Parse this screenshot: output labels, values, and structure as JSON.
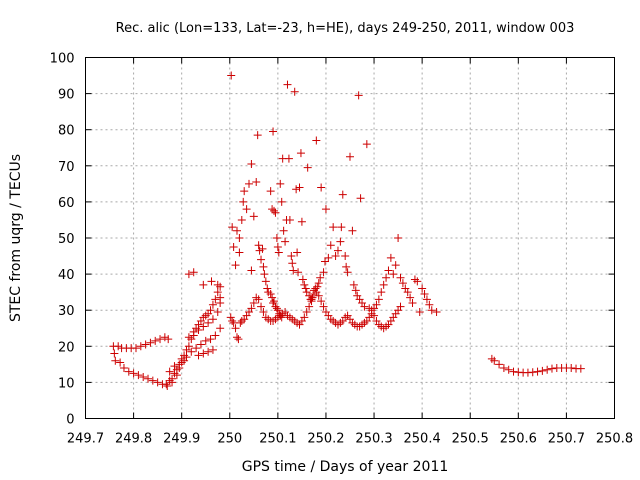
{
  "chart_data": {
    "type": "scatter",
    "title": "Rec. alic (Lon=133, Lat=-23, h=HE), days 249-250, 2011, window 003",
    "xlabel": "GPS time / Days of year 2011",
    "ylabel": "STEC from uqrg / TECUs",
    "xlim": [
      249.7,
      250.8
    ],
    "ylim": [
      0,
      100
    ],
    "xticks": [
      "249.7",
      "249.8",
      "249.9",
      "250",
      "250.1",
      "250.2",
      "250.3",
      "250.4",
      "250.5",
      "250.6",
      "250.7",
      "250.8"
    ],
    "yticks": [
      "0",
      "10",
      "20",
      "30",
      "40",
      "50",
      "60",
      "70",
      "80",
      "90",
      "100"
    ],
    "grid": true,
    "marker": "+",
    "color": "#cc0000",
    "points": [
      [
        249.758,
        20.0
      ],
      [
        249.76,
        18.0
      ],
      [
        249.762,
        16.0
      ],
      [
        249.768,
        20.0
      ],
      [
        249.772,
        15.5
      ],
      [
        249.775,
        19.5
      ],
      [
        249.78,
        14.0
      ],
      [
        249.785,
        19.5
      ],
      [
        249.79,
        13.0
      ],
      [
        249.795,
        19.5
      ],
      [
        249.8,
        12.5
      ],
      [
        249.805,
        19.5
      ],
      [
        249.81,
        12.0
      ],
      [
        249.815,
        20.0
      ],
      [
        249.82,
        11.5
      ],
      [
        249.825,
        20.5
      ],
      [
        249.83,
        11.0
      ],
      [
        249.835,
        21.0
      ],
      [
        249.84,
        10.5
      ],
      [
        249.845,
        21.5
      ],
      [
        249.85,
        10.0
      ],
      [
        249.855,
        22.0
      ],
      [
        249.86,
        9.5
      ],
      [
        249.865,
        22.5
      ],
      [
        249.868,
        9.5
      ],
      [
        249.872,
        22.0
      ],
      [
        249.875,
        10.5
      ],
      [
        249.88,
        11.0
      ],
      [
        249.885,
        12.5
      ],
      [
        249.89,
        13.5
      ],
      [
        249.895,
        15.0
      ],
      [
        249.9,
        16.5
      ],
      [
        249.905,
        17.5
      ],
      [
        249.91,
        19.0
      ],
      [
        249.915,
        20.0
      ],
      [
        249.92,
        22.0
      ],
      [
        249.925,
        24.0
      ],
      [
        249.93,
        25.0
      ],
      [
        249.935,
        26.0
      ],
      [
        249.94,
        27.0
      ],
      [
        249.945,
        28.0
      ],
      [
        249.95,
        28.5
      ],
      [
        249.955,
        29.0
      ],
      [
        249.96,
        30.0
      ],
      [
        249.965,
        31.5
      ],
      [
        249.97,
        33.0
      ],
      [
        249.975,
        35.0
      ],
      [
        249.98,
        36.5
      ],
      [
        249.915,
        40.0
      ],
      [
        249.925,
        40.5
      ],
      [
        249.945,
        37.0
      ],
      [
        249.962,
        38.0
      ],
      [
        249.975,
        37.0
      ],
      [
        249.98,
        33.5
      ],
      [
        249.9,
        15.5
      ],
      [
        249.91,
        17.0
      ],
      [
        249.92,
        18.5
      ],
      [
        249.93,
        19.5
      ],
      [
        249.94,
        20.5
      ],
      [
        249.95,
        21.5
      ],
      [
        249.96,
        22.0
      ],
      [
        249.97,
        23.0
      ],
      [
        249.98,
        25.0
      ],
      [
        249.89,
        12.0
      ],
      [
        249.88,
        10.0
      ],
      [
        249.87,
        9.0
      ],
      [
        249.875,
        13.0
      ],
      [
        249.885,
        14.5
      ],
      [
        249.895,
        14.0
      ],
      [
        249.905,
        16.0
      ],
      [
        249.915,
        22.5
      ],
      [
        249.925,
        23.0
      ],
      [
        249.935,
        24.5
      ],
      [
        249.945,
        25.5
      ],
      [
        249.955,
        26.5
      ],
      [
        249.965,
        27.5
      ],
      [
        249.975,
        29.5
      ],
      [
        249.98,
        32.0
      ],
      [
        249.955,
        18.5
      ],
      [
        249.965,
        19.0
      ],
      [
        249.945,
        18.0
      ],
      [
        249.935,
        17.5
      ],
      [
        250.005,
        53.0
      ],
      [
        250.008,
        47.5
      ],
      [
        250.012,
        42.5
      ],
      [
        250.015,
        52.0
      ],
      [
        250.02,
        50.0
      ],
      [
        250.025,
        55.0
      ],
      [
        250.028,
        60.0
      ],
      [
        250.03,
        63.0
      ],
      [
        250.035,
        58.0
      ],
      [
        250.04,
        65.0
      ],
      [
        250.045,
        70.5
      ],
      [
        250.05,
        56.0
      ],
      [
        250.055,
        65.5
      ],
      [
        250.058,
        78.5
      ],
      [
        250.003,
        95.0
      ],
      [
        250.02,
        46.0
      ],
      [
        250.045,
        41.0
      ],
      [
        250.06,
        48.0
      ],
      [
        250.062,
        46.5
      ],
      [
        250.065,
        44.0
      ],
      [
        250.068,
        47.0
      ],
      [
        250.07,
        42.0
      ],
      [
        250.072,
        40.0
      ],
      [
        250.075,
        38.0
      ],
      [
        250.078,
        36.0
      ],
      [
        250.08,
        35.0
      ],
      [
        250.085,
        34.5
      ],
      [
        250.088,
        33.5
      ],
      [
        250.09,
        32.0
      ],
      [
        250.092,
        32.5
      ],
      [
        250.095,
        31.0
      ],
      [
        250.098,
        30.5
      ],
      [
        250.1,
        30.0
      ],
      [
        250.103,
        29.0
      ],
      [
        250.105,
        28.5
      ],
      [
        250.108,
        28.0
      ],
      [
        250.085,
        63.0
      ],
      [
        250.088,
        58.0
      ],
      [
        250.09,
        79.5
      ],
      [
        250.092,
        57.5
      ],
      [
        250.095,
        57.0
      ],
      [
        250.098,
        50.0
      ],
      [
        250.1,
        47.5
      ],
      [
        250.102,
        46.0
      ],
      [
        250.105,
        65.0
      ],
      [
        250.108,
        60.0
      ],
      [
        250.11,
        72.0
      ],
      [
        250.112,
        52.0
      ],
      [
        250.115,
        49.0
      ],
      [
        250.118,
        55.0
      ],
      [
        250.12,
        92.5
      ],
      [
        250.123,
        72.0
      ],
      [
        250.125,
        55.0
      ],
      [
        250.128,
        45.0
      ],
      [
        250.13,
        43.0
      ],
      [
        250.132,
        41.0
      ],
      [
        250.135,
        90.5
      ],
      [
        250.138,
        63.5
      ],
      [
        250.14,
        46.0
      ],
      [
        250.142,
        40.5
      ],
      [
        250.145,
        64.0
      ],
      [
        250.148,
        73.5
      ],
      [
        250.15,
        54.5
      ],
      [
        250.152,
        38.5
      ],
      [
        250.155,
        37.0
      ],
      [
        250.158,
        36.0
      ],
      [
        250.16,
        35.0
      ],
      [
        250.162,
        69.5
      ],
      [
        250.165,
        34.0
      ],
      [
        250.168,
        33.0
      ],
      [
        250.17,
        32.5
      ],
      [
        250.172,
        33.5
      ],
      [
        250.175,
        35.5
      ],
      [
        250.178,
        36.0
      ],
      [
        250.18,
        77.0
      ],
      [
        250.182,
        36.5
      ],
      [
        250.185,
        37.5
      ],
      [
        250.188,
        39.0
      ],
      [
        250.19,
        64.0
      ],
      [
        250.195,
        40.5
      ],
      [
        250.198,
        43.5
      ],
      [
        250.2,
        58.0
      ],
      [
        250.205,
        44.5
      ],
      [
        250.21,
        48.0
      ],
      [
        250.215,
        53.0
      ],
      [
        250.22,
        45.0
      ],
      [
        250.225,
        46.5
      ],
      [
        250.23,
        49.0
      ],
      [
        250.232,
        53.0
      ],
      [
        250.235,
        62.0
      ],
      [
        250.24,
        45.0
      ],
      [
        250.242,
        42.0
      ],
      [
        250.245,
        40.5
      ],
      [
        250.25,
        72.5
      ],
      [
        250.255,
        52.0
      ],
      [
        250.258,
        37.0
      ],
      [
        250.262,
        35.5
      ],
      [
        250.265,
        34.0
      ],
      [
        250.268,
        89.5
      ],
      [
        250.27,
        33.0
      ],
      [
        250.272,
        61.0
      ],
      [
        250.275,
        32.0
      ],
      [
        250.28,
        31.0
      ],
      [
        250.285,
        76.0
      ],
      [
        250.29,
        30.5
      ],
      [
        250.295,
        30.0
      ],
      [
        250.3,
        30.5
      ],
      [
        250.305,
        31.5
      ],
      [
        250.31,
        33.0
      ],
      [
        250.315,
        35.0
      ],
      [
        250.32,
        37.0
      ],
      [
        250.325,
        39.0
      ],
      [
        250.33,
        41.0
      ],
      [
        250.335,
        44.5
      ],
      [
        250.34,
        40.0
      ],
      [
        250.345,
        42.5
      ],
      [
        250.35,
        50.0
      ],
      [
        250.355,
        39.0
      ],
      [
        250.36,
        37.5
      ],
      [
        250.365,
        36.0
      ],
      [
        250.37,
        35.0
      ],
      [
        250.375,
        33.5
      ],
      [
        250.38,
        32.0
      ],
      [
        250.385,
        38.5
      ],
      [
        250.39,
        38.0
      ],
      [
        250.395,
        29.5
      ],
      [
        250.002,
        28.0
      ],
      [
        250.005,
        27.0
      ],
      [
        250.008,
        26.5
      ],
      [
        250.012,
        25.0
      ],
      [
        250.015,
        22.5
      ],
      [
        250.018,
        22.0
      ],
      [
        250.022,
        26.5
      ],
      [
        250.025,
        27.0
      ],
      [
        250.03,
        27.5
      ],
      [
        250.035,
        28.5
      ],
      [
        250.04,
        29.5
      ],
      [
        250.045,
        30.5
      ],
      [
        250.05,
        32.0
      ],
      [
        250.055,
        33.5
      ],
      [
        250.06,
        33.0
      ],
      [
        250.065,
        31.0
      ],
      [
        250.07,
        29.5
      ],
      [
        250.075,
        28.0
      ],
      [
        250.08,
        27.5
      ],
      [
        250.085,
        27.0
      ],
      [
        250.09,
        27.0
      ],
      [
        250.095,
        27.5
      ],
      [
        250.1,
        28.0
      ],
      [
        250.105,
        28.5
      ],
      [
        250.11,
        29.0
      ],
      [
        250.115,
        29.5
      ],
      [
        250.12,
        28.5
      ],
      [
        250.125,
        28.0
      ],
      [
        250.13,
        27.5
      ],
      [
        250.135,
        27.0
      ],
      [
        250.14,
        26.5
      ],
      [
        250.145,
        26.0
      ],
      [
        250.15,
        27.0
      ],
      [
        250.155,
        28.0
      ],
      [
        250.16,
        29.5
      ],
      [
        250.165,
        31.0
      ],
      [
        250.17,
        33.0
      ],
      [
        250.175,
        34.5
      ],
      [
        250.18,
        35.0
      ],
      [
        250.185,
        34.0
      ],
      [
        250.19,
        32.5
      ],
      [
        250.195,
        31.0
      ],
      [
        250.2,
        29.5
      ],
      [
        250.205,
        28.5
      ],
      [
        250.21,
        27.5
      ],
      [
        250.215,
        27.0
      ],
      [
        250.22,
        26.5
      ],
      [
        250.225,
        26.0
      ],
      [
        250.23,
        26.5
      ],
      [
        250.235,
        27.0
      ],
      [
        250.24,
        28.0
      ],
      [
        250.245,
        28.5
      ],
      [
        250.25,
        27.5
      ],
      [
        250.255,
        26.5
      ],
      [
        250.26,
        26.0
      ],
      [
        250.265,
        25.5
      ],
      [
        250.27,
        25.5
      ],
      [
        250.275,
        26.0
      ],
      [
        250.28,
        26.5
      ],
      [
        250.285,
        27.0
      ],
      [
        250.29,
        28.0
      ],
      [
        250.295,
        29.0
      ],
      [
        250.3,
        28.5
      ],
      [
        250.305,
        27.0
      ],
      [
        250.31,
        26.0
      ],
      [
        250.315,
        25.5
      ],
      [
        250.32,
        25.0
      ],
      [
        250.325,
        25.5
      ],
      [
        250.33,
        26.0
      ],
      [
        250.335,
        27.0
      ],
      [
        250.34,
        28.0
      ],
      [
        250.345,
        29.0
      ],
      [
        250.35,
        30.0
      ],
      [
        250.355,
        31.0
      ],
      [
        250.4,
        36.0
      ],
      [
        250.405,
        34.5
      ],
      [
        250.41,
        33.0
      ],
      [
        250.415,
        31.5
      ],
      [
        250.42,
        30.0
      ],
      [
        250.43,
        29.5
      ],
      [
        250.545,
        16.5
      ],
      [
        250.55,
        16.0
      ],
      [
        250.56,
        15.0
      ],
      [
        250.57,
        14.0
      ],
      [
        250.58,
        13.5
      ],
      [
        250.59,
        13.0
      ],
      [
        250.6,
        12.8
      ],
      [
        250.61,
        12.7
      ],
      [
        250.62,
        12.7
      ],
      [
        250.63,
        12.8
      ],
      [
        250.64,
        13.0
      ],
      [
        250.65,
        13.2
      ],
      [
        250.66,
        13.5
      ],
      [
        250.67,
        13.8
      ],
      [
        250.68,
        14.0
      ],
      [
        250.69,
        14.0
      ],
      [
        250.7,
        14.0
      ],
      [
        250.71,
        14.0
      ],
      [
        250.72,
        13.8
      ],
      [
        250.73,
        13.8
      ]
    ]
  }
}
